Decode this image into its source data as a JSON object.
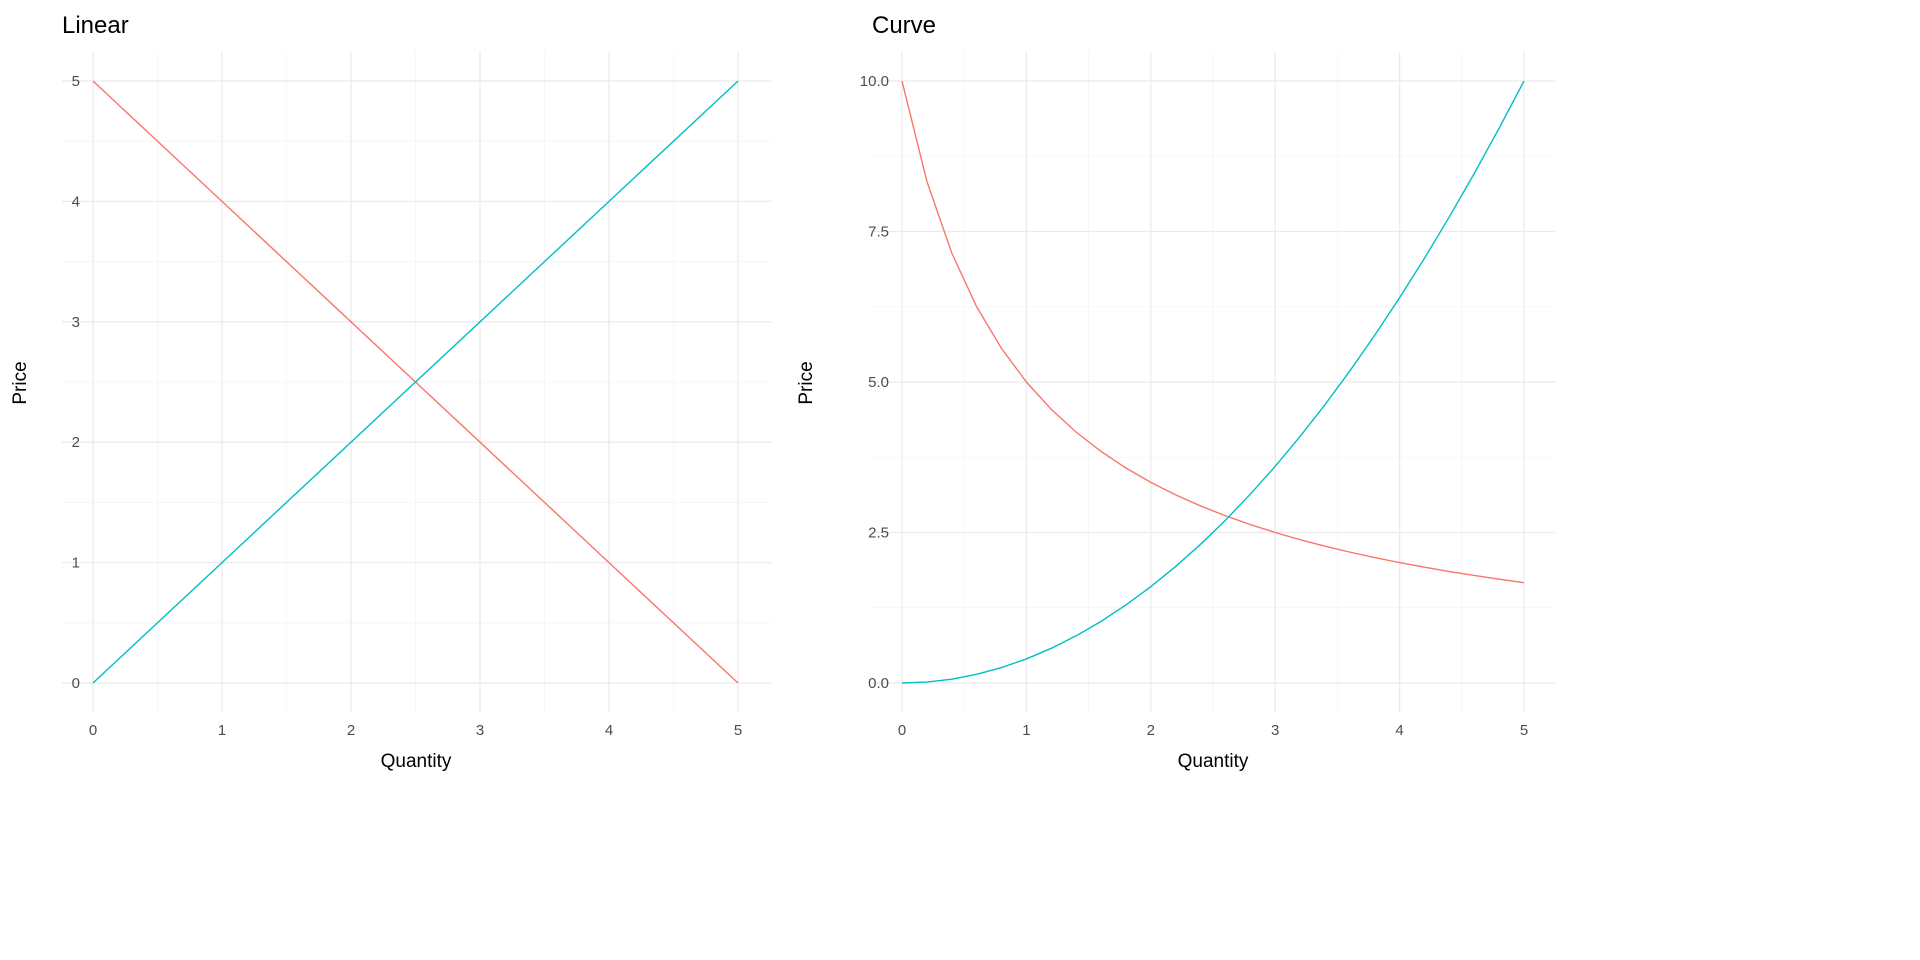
{
  "chart_data": [
    {
      "type": "line",
      "title": "Linear",
      "xlabel": "Quantity",
      "ylabel": "Price",
      "xlim": [
        0,
        5
      ],
      "ylim": [
        0,
        5
      ],
      "xticks": [
        0,
        1,
        2,
        3,
        4,
        5
      ],
      "yticks": [
        0,
        1,
        2,
        3,
        4,
        5
      ],
      "xtick_labels": [
        "0",
        "1",
        "2",
        "3",
        "4",
        "5"
      ],
      "ytick_labels": [
        "0",
        "1",
        "2",
        "3",
        "4",
        "5"
      ],
      "grid": true,
      "series": [
        {
          "color": "#F8766D",
          "x": [
            0,
            5
          ],
          "y": [
            5,
            0
          ]
        },
        {
          "color": "#00BFC4",
          "x": [
            0,
            5
          ],
          "y": [
            0,
            5
          ]
        }
      ]
    },
    {
      "type": "line",
      "title": "Curve",
      "xlabel": "Quantity",
      "ylabel": "Price",
      "xlim": [
        0,
        5
      ],
      "ylim": [
        0,
        10
      ],
      "xticks": [
        0,
        1,
        2,
        3,
        4,
        5
      ],
      "yticks": [
        0,
        2.5,
        5,
        7.5,
        10
      ],
      "xtick_labels": [
        "0",
        "1",
        "2",
        "3",
        "4",
        "5"
      ],
      "ytick_labels": [
        "0.0",
        "2.5",
        "5.0",
        "7.5",
        "10.0"
      ],
      "grid": true,
      "series": [
        {
          "color": "#F8766D",
          "x": [
            0,
            0.2,
            0.4,
            0.6,
            0.8,
            1,
            1.2,
            1.4,
            1.6,
            1.8,
            2,
            2.2,
            2.4,
            2.6,
            2.8,
            3,
            3.2,
            3.4,
            3.6,
            3.8,
            4,
            4.2,
            4.4,
            4.6,
            4.8,
            5
          ],
          "y": [
            10,
            8.333,
            7.143,
            6.25,
            5.556,
            5,
            4.545,
            4.167,
            3.846,
            3.571,
            3.333,
            3.125,
            2.941,
            2.778,
            2.632,
            2.5,
            2.381,
            2.273,
            2.174,
            2.083,
            2,
            1.923,
            1.852,
            1.786,
            1.724,
            1.667
          ]
        },
        {
          "color": "#00BFC4",
          "x": [
            0,
            0.2,
            0.4,
            0.6,
            0.8,
            1,
            1.2,
            1.4,
            1.6,
            1.8,
            2,
            2.2,
            2.4,
            2.6,
            2.8,
            3,
            3.2,
            3.4,
            3.6,
            3.8,
            4,
            4.2,
            4.4,
            4.6,
            4.8,
            5
          ],
          "y": [
            0,
            0.016,
            0.064,
            0.144,
            0.256,
            0.4,
            0.576,
            0.784,
            1.024,
            1.296,
            1.6,
            1.936,
            2.304,
            2.704,
            3.136,
            3.6,
            4.096,
            4.624,
            5.184,
            5.776,
            6.4,
            7.056,
            7.744,
            8.464,
            9.216,
            10
          ]
        }
      ]
    }
  ]
}
